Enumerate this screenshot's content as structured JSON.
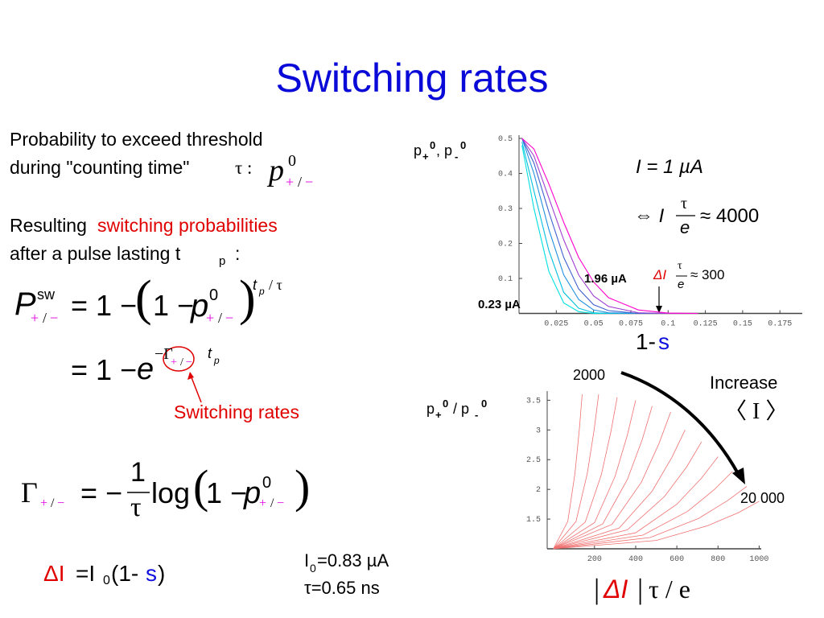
{
  "title": "Switching rates",
  "intro": {
    "line1": "Probability to exceed threshold",
    "line2": "during \"counting time\"",
    "tau": "τ :"
  },
  "p0": {
    "p": "p",
    "sup": "0",
    "plus": "+",
    "slash": "/",
    "minus": "−"
  },
  "resulting": {
    "lead": "Resulting",
    "highlight": "switching probabilities",
    "line2": "after a pulse lasting t",
    "sub": "p",
    "colon": ":"
  },
  "eq_p": {
    "P": "P",
    "sup": "sw",
    "plus": "+",
    "slash": "/",
    "minus": "−",
    "eq": "= 1 −",
    "open": "(",
    "one": "1 −",
    "p": "p",
    "p_sup": "0",
    "p_plus": "+",
    "p_slash": "/",
    "p_minus": "−",
    "close": ")",
    "t": "t",
    "t_sub": "p",
    "over": "/ τ"
  },
  "eq_e": {
    "eq": "= 1 −",
    "e": "e",
    "gamma": "−Γ",
    "plus": "+",
    "slash": "/",
    "minus": "−",
    "t": "t",
    "t_sub": "p"
  },
  "switching_label": "Switching rates",
  "eq_gamma": {
    "gamma": "Γ",
    "plus": "+",
    "slash": "/",
    "minus": "−",
    "eq": "= −",
    "num": "1",
    "den": "τ",
    "log": "log",
    "open": "(",
    "one": "1 −",
    "p": "p",
    "p_sup": "0",
    "p_plus": "+",
    "p_slash": "/",
    "p_minus": "−",
    "close": ")"
  },
  "eq_delta": {
    "delta": "ΔI",
    "eq": "=I",
    "sub": "0",
    "open": "(1-",
    "s": "s",
    "close": ")"
  },
  "params": {
    "I": "I",
    "sub": "0",
    "value": "=0.83 µA",
    "tau": "τ=0.65 ns"
  },
  "chart_data": [
    {
      "type": "line",
      "xlim": [
        0,
        0.19
      ],
      "ylim": [
        0,
        0.5
      ],
      "xticks": [
        0.025,
        0.05,
        0.075,
        0.1,
        0.125,
        0.15,
        0.175
      ],
      "yticks": [
        0.1,
        0.2,
        0.3,
        0.4,
        0.5
      ],
      "x": [
        0.002,
        0.01,
        0.02,
        0.03,
        0.04,
        0.05,
        0.06,
        0.08,
        0.1,
        0.12
      ],
      "series": [
        {
          "color": "#00e0e0",
          "values": [
            0.48,
            0.3,
            0.12,
            0.03,
            0.005,
            0,
            0,
            0,
            0,
            0
          ]
        },
        {
          "color": "#00c0e0",
          "values": [
            0.49,
            0.35,
            0.18,
            0.06,
            0.015,
            0.002,
            0,
            0,
            0,
            0
          ]
        },
        {
          "color": "#2090e0",
          "values": [
            0.5,
            0.4,
            0.24,
            0.11,
            0.04,
            0.01,
            0.002,
            0,
            0,
            0
          ]
        },
        {
          "color": "#4060d0",
          "values": [
            0.5,
            0.43,
            0.29,
            0.16,
            0.07,
            0.025,
            0.008,
            0,
            0,
            0
          ]
        },
        {
          "color": "#a040d0",
          "values": [
            0.5,
            0.45,
            0.33,
            0.21,
            0.11,
            0.05,
            0.02,
            0.002,
            0,
            0
          ]
        },
        {
          "color": "#ff00cc",
          "values": [
            0.5,
            0.47,
            0.37,
            0.26,
            0.16,
            0.09,
            0.045,
            0.01,
            0.001,
            0
          ]
        }
      ],
      "ylabel": [
        "p",
        "+",
        "0",
        ", p",
        "-",
        "0"
      ],
      "xlabel": [
        "1-",
        "s"
      ],
      "annotations": {
        "current": "I = 1 µA",
        "equiv": "⇔ I",
        "tau1": "τ",
        "e1": "e",
        "approx1": "≈ 4000",
        "delta": "ΔI",
        "tau2": "τ",
        "e2": "e",
        "approx2": "≈ 300",
        "high": "1.96 µA",
        "low": "0.23 µA"
      }
    },
    {
      "type": "line",
      "xlim": [
        -30,
        1010
      ],
      "ylim": [
        1,
        3.6
      ],
      "xticks": [
        200,
        400,
        600,
        800,
        1000
      ],
      "yticks": [
        1.5,
        2,
        2.5,
        3,
        3.5
      ],
      "series": [
        {
          "color": "#f07070",
          "x": [
            0,
            70,
            105,
            126,
            140
          ],
          "values": [
            1,
            1.46,
            2.27,
            3.0,
            3.6
          ]
        },
        {
          "color": "#f07070",
          "x": [
            0,
            110,
            165,
            198,
            220
          ],
          "values": [
            1,
            1.46,
            2.27,
            3.0,
            3.6
          ]
        },
        {
          "color": "#f07070",
          "x": [
            0,
            155,
            232.5,
            279,
            310
          ],
          "values": [
            1,
            1.45,
            2.24,
            2.96,
            3.55
          ]
        },
        {
          "color": "#f07070",
          "x": [
            0,
            200,
            300,
            360,
            400
          ],
          "values": [
            1,
            1.44,
            2.22,
            2.92,
            3.5
          ]
        },
        {
          "color": "#f07070",
          "x": [
            0,
            240,
            360,
            432,
            480
          ],
          "values": [
            1,
            1.42,
            2.17,
            2.84,
            3.4
          ]
        },
        {
          "color": "#f07070",
          "x": [
            0,
            285,
            427.5,
            513,
            570
          ],
          "values": [
            1,
            1.41,
            2.12,
            2.77,
            3.3
          ]
        },
        {
          "color": "#f07070",
          "x": [
            0,
            320,
            480,
            576,
            640
          ],
          "values": [
            1,
            1.35,
            1.97,
            2.54,
            3.0
          ]
        },
        {
          "color": "#f07070",
          "x": [
            0,
            360,
            540,
            648,
            720
          ],
          "values": [
            1,
            1.32,
            1.88,
            2.38,
            2.8
          ]
        },
        {
          "color": "#f07070",
          "x": [
            0,
            400,
            600,
            720,
            800
          ],
          "values": [
            1,
            1.27,
            1.75,
            2.19,
            2.55
          ]
        },
        {
          "color": "#f07070",
          "x": [
            0,
            435,
            652.5,
            783,
            870
          ],
          "values": [
            1,
            1.23,
            1.63,
            2.0,
            2.3
          ]
        },
        {
          "color": "#f07070",
          "x": [
            0,
            470,
            705,
            846,
            940
          ],
          "values": [
            1,
            1.19,
            1.51,
            1.81,
            2.05
          ]
        },
        {
          "color": "#f07070",
          "x": [
            0,
            500,
            750,
            900,
            1000
          ],
          "values": [
            1,
            1.14,
            1.39,
            1.61,
            1.8
          ]
        }
      ],
      "ylabel": [
        "p",
        "+",
        "0",
        " / p",
        "-",
        "0"
      ],
      "xlabel": [
        "|",
        "ΔI",
        "|",
        "τ / e"
      ],
      "annotations": {
        "start": "2000",
        "increase": "Increase",
        "mean": "〈 I 〉",
        "end": "20 000"
      }
    }
  ]
}
